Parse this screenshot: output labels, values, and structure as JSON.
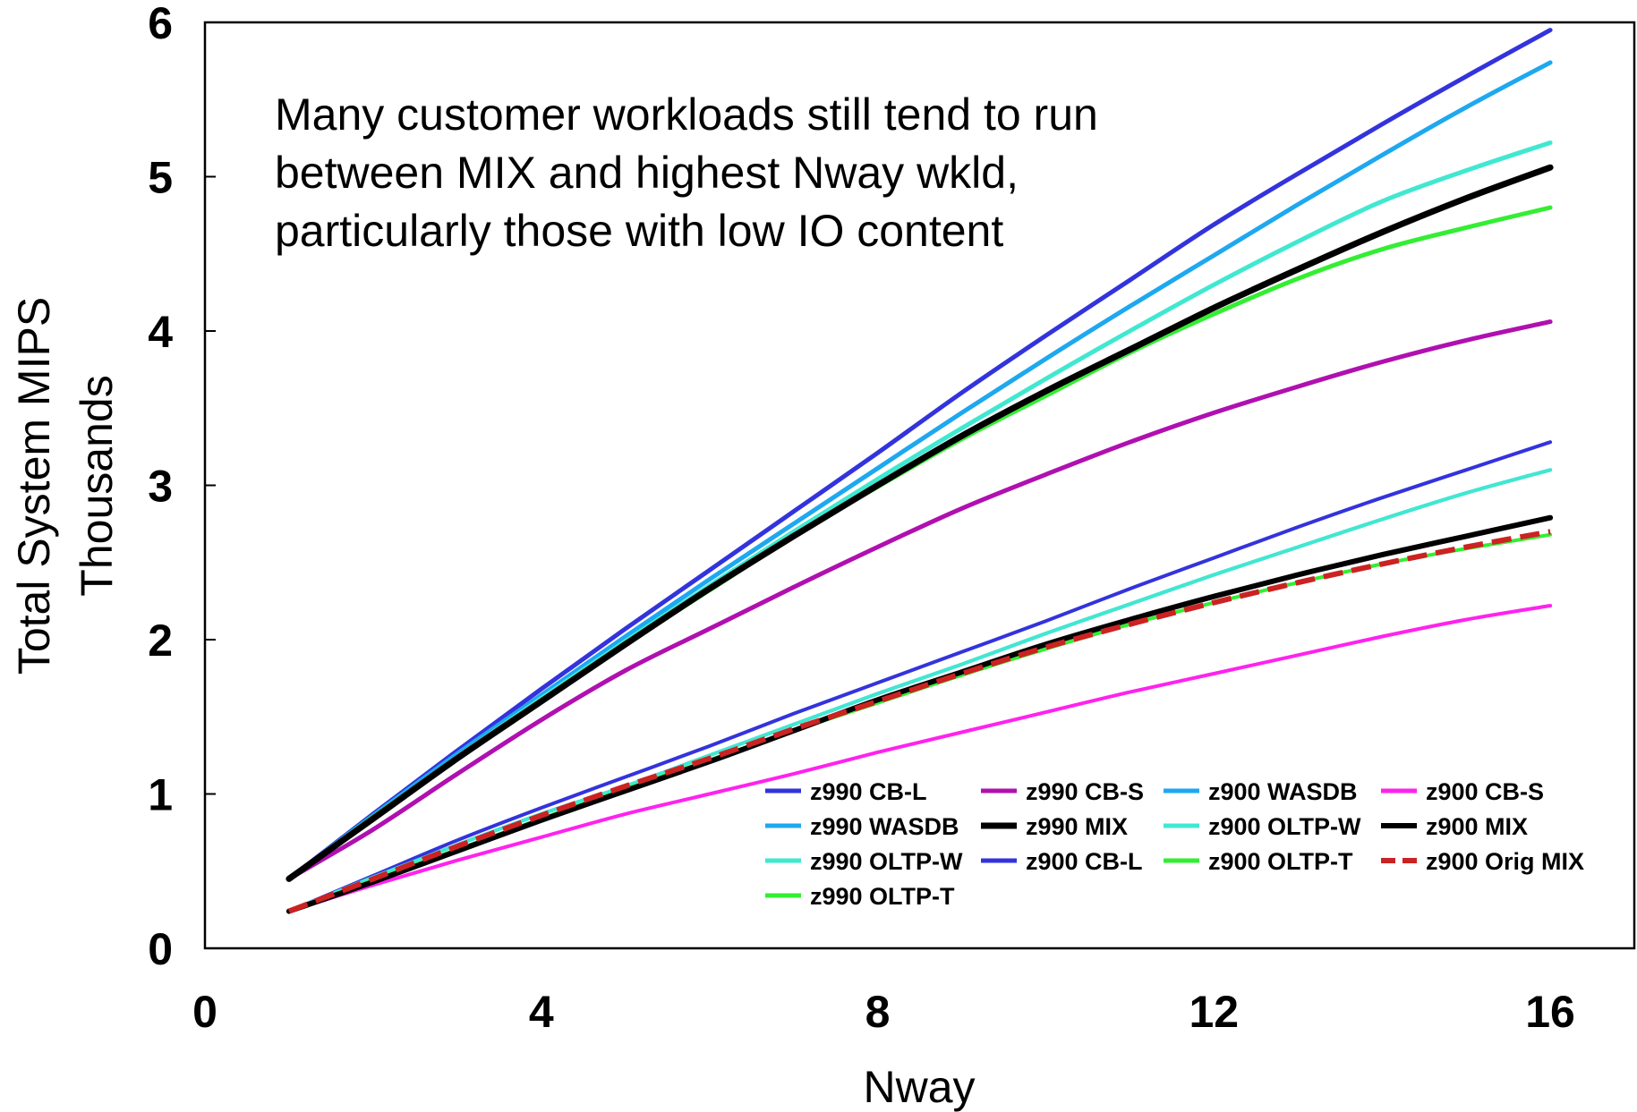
{
  "chart_data": {
    "type": "line",
    "xlabel": "Nway",
    "ylabel": "Total System MIPS",
    "ylabel2": "Thousands",
    "xlim": [
      0,
      17
    ],
    "ylim": [
      0,
      6
    ],
    "xticks": [
      "0",
      "4",
      "8",
      "12",
      "16"
    ],
    "yticks": [
      "0",
      "1",
      "2",
      "3",
      "4",
      "5",
      "6"
    ],
    "grid": false,
    "legend_position": "bottom-right",
    "annotation_lines": [
      "Many customer workloads still tend to run",
      "between MIX and highest Nway wkld,",
      "particularly those with low IO content"
    ],
    "x": [
      1,
      2,
      3,
      4,
      5,
      6,
      7,
      8,
      9,
      10,
      11,
      12,
      13,
      14,
      15,
      16
    ],
    "series": [
      {
        "name": "z990 CB-L",
        "color": "#3333dd",
        "width": 5,
        "dash": "",
        "values": [
          0.45,
          0.87,
          1.28,
          1.68,
          2.07,
          2.45,
          2.83,
          3.21,
          3.6,
          3.97,
          4.33,
          4.69,
          5.02,
          5.34,
          5.65,
          5.95
        ]
      },
      {
        "name": "z990 WASDB",
        "color": "#1ea8f0",
        "width": 5,
        "dash": "",
        "values": [
          0.45,
          0.86,
          1.26,
          1.64,
          2.02,
          2.39,
          2.75,
          3.11,
          3.47,
          3.82,
          4.16,
          4.49,
          4.82,
          5.14,
          5.45,
          5.74
        ]
      },
      {
        "name": "z990 OLTP-W",
        "color": "#40e8d0",
        "width": 5,
        "dash": "",
        "values": [
          0.45,
          0.85,
          1.24,
          1.62,
          1.99,
          2.35,
          2.7,
          3.04,
          3.37,
          3.69,
          4.0,
          4.3,
          4.58,
          4.84,
          5.04,
          5.22
        ]
      },
      {
        "name": "z990 OLTP-T",
        "color": "#33ee33",
        "width": 5,
        "dash": "",
        "values": [
          0.45,
          0.85,
          1.23,
          1.6,
          1.97,
          2.32,
          2.67,
          2.99,
          3.3,
          3.58,
          3.86,
          4.11,
          4.34,
          4.53,
          4.67,
          4.8
        ]
      },
      {
        "name": "z990 CB-S",
        "color": "#b010b0",
        "width": 5,
        "dash": "",
        "values": [
          0.45,
          0.77,
          1.13,
          1.48,
          1.8,
          2.07,
          2.34,
          2.6,
          2.85,
          3.07,
          3.28,
          3.47,
          3.64,
          3.8,
          3.94,
          4.06
        ]
      },
      {
        "name": "z990 MIX",
        "color": "#000000",
        "width": 7,
        "dash": "",
        "values": [
          0.45,
          0.84,
          1.23,
          1.6,
          1.97,
          2.33,
          2.67,
          3.0,
          3.32,
          3.61,
          3.88,
          4.15,
          4.4,
          4.64,
          4.86,
          5.06
        ]
      },
      {
        "name": "z900 CB-L",
        "color": "#3333dd",
        "width": 4,
        "dash": "",
        "values": [
          0.24,
          0.47,
          0.7,
          0.91,
          1.11,
          1.31,
          1.52,
          1.72,
          1.92,
          2.12,
          2.33,
          2.53,
          2.73,
          2.92,
          3.1,
          3.28
        ]
      },
      {
        "name": "z900 WASDB",
        "color": "#1ea8f0",
        "width": 4,
        "dash": "",
        "values": [
          0.24,
          0.46,
          0.67,
          0.87,
          1.05,
          1.25,
          1.45,
          1.65,
          1.84,
          2.04,
          2.23,
          2.42,
          2.6,
          2.78,
          2.95,
          3.1
        ]
      },
      {
        "name": "z900 OLTP-W",
        "color": "#40e8d0",
        "width": 4,
        "dash": "",
        "values": [
          0.24,
          0.46,
          0.67,
          0.87,
          1.05,
          1.25,
          1.45,
          1.65,
          1.84,
          2.04,
          2.23,
          2.42,
          2.6,
          2.78,
          2.95,
          3.1
        ]
      },
      {
        "name": "z900 OLTP-T",
        "color": "#33ee33",
        "width": 4,
        "dash": "",
        "values": [
          0.24,
          0.44,
          0.64,
          0.84,
          1.03,
          1.22,
          1.41,
          1.59,
          1.77,
          1.94,
          2.1,
          2.24,
          2.37,
          2.49,
          2.59,
          2.68
        ]
      },
      {
        "name": "z900 CB-S",
        "color": "#ff22ee",
        "width": 4,
        "dash": "",
        "values": [
          0.24,
          0.41,
          0.57,
          0.72,
          0.87,
          1.0,
          1.13,
          1.27,
          1.4,
          1.53,
          1.66,
          1.78,
          1.9,
          2.02,
          2.13,
          2.22
        ]
      },
      {
        "name": "z900 MIX",
        "color": "#000000",
        "width": 6,
        "dash": "",
        "values": [
          0.24,
          0.43,
          0.63,
          0.83,
          1.02,
          1.21,
          1.41,
          1.61,
          1.79,
          1.97,
          2.13,
          2.28,
          2.42,
          2.55,
          2.67,
          2.79
        ]
      },
      {
        "name": "z900 Orig MIX",
        "color": "#cc2222",
        "width": 6,
        "dash": "22,10",
        "values": [
          0.24,
          0.45,
          0.66,
          0.86,
          1.05,
          1.23,
          1.42,
          1.6,
          1.78,
          1.95,
          2.1,
          2.24,
          2.37,
          2.49,
          2.6,
          2.7
        ]
      }
    ],
    "legend": [
      [
        "z990 CB-L",
        "z990 CB-S",
        "z900 WASDB",
        "z900 CB-S"
      ],
      [
        "z990 WASDB",
        "z990 MIX",
        "z900 OLTP-W",
        "z900 MIX"
      ],
      [
        "z990 OLTP-W",
        "z900 CB-L",
        "z900 OLTP-T",
        "z900 Orig MIX"
      ],
      [
        "z990 OLTP-T"
      ]
    ]
  }
}
